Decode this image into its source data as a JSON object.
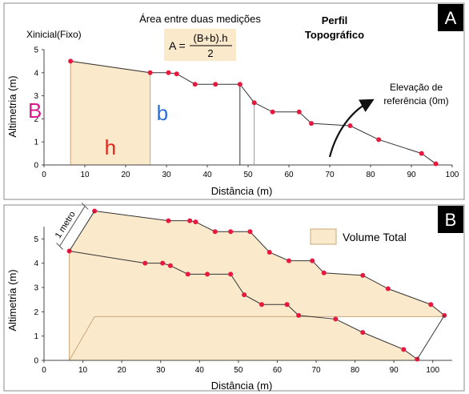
{
  "colors": {
    "area_fill": "#fbe9cc",
    "area_stroke": "#caa77a",
    "point": "#e8193e",
    "line": "#333333",
    "label_B": "#d81b8c",
    "label_b": "#2a6fd6",
    "label_h": "#e8251a",
    "badge_bg": "#000000",
    "badge_fg": "#ffffff"
  },
  "chart_data": [
    {
      "id": "A",
      "type": "line",
      "badge": "A",
      "title_topright": [
        "Perfil",
        "Topográfico"
      ],
      "area_title": "Área entre duas medições",
      "formula": {
        "lhs": "A =",
        "numerator": "(B+b).h",
        "denominator": "2"
      },
      "x_start_label": "Xinicial(Fixo)",
      "xlabel": "Distância (m)",
      "ylabel": "Altimetria (m)",
      "xlim": [
        0,
        100
      ],
      "ylim": [
        0,
        5
      ],
      "xticks": [
        "0",
        "10",
        "20",
        "30",
        "40",
        "50",
        "60",
        "70",
        "80",
        "90",
        "100"
      ],
      "yticks": [
        "0",
        "1",
        "2",
        "3",
        "4",
        "5"
      ],
      "labels": {
        "B": "B",
        "b": "b",
        "h": "h"
      },
      "annotation": [
        "Elevação de",
        "referência (0m)"
      ],
      "area_segment": {
        "x0": 6.5,
        "x1": 26,
        "y0": 4.5,
        "y1": 4.0
      },
      "vertical_lines": [
        48,
        51.5
      ],
      "series": [
        {
          "x": [
            6.5,
            26,
            30.5,
            32.5,
            37,
            42,
            48,
            51.5,
            56,
            62.5,
            65.5,
            75,
            82,
            92.5,
            96
          ],
          "y": [
            4.5,
            4.0,
            4.0,
            3.95,
            3.5,
            3.5,
            3.5,
            2.7,
            2.3,
            2.3,
            1.8,
            1.7,
            1.1,
            0.5,
            0.05
          ]
        }
      ]
    },
    {
      "id": "B",
      "type": "area",
      "badge": "B",
      "xlabel": "Distância (m)",
      "ylabel": "Altimetria (m)",
      "xlim": [
        0,
        105
      ],
      "ylim": [
        0,
        6
      ],
      "xticks": [
        "0",
        "10",
        "20",
        "30",
        "40",
        "50",
        "60",
        "70",
        "80",
        "90",
        "100"
      ],
      "yticks": [
        "0",
        "1",
        "2",
        "3",
        "4",
        "5"
      ],
      "legend": "Volume Total",
      "dimension_label": "1 metro",
      "series": [
        {
          "x": [
            13,
            32,
            37.5,
            39,
            44,
            48,
            53,
            58,
            63,
            69,
            72,
            82,
            88.5,
            99.5,
            103
          ],
          "y": [
            6.15,
            5.75,
            5.75,
            5.7,
            5.3,
            5.3,
            5.3,
            4.45,
            4.1,
            4.1,
            3.6,
            3.5,
            2.95,
            2.3,
            1.85
          ]
        },
        {
          "x": [
            6.5,
            26,
            30.5,
            32.5,
            37,
            42,
            48,
            51.5,
            56,
            62.5,
            65.5,
            75,
            82,
            92.5,
            96
          ],
          "y": [
            4.5,
            4.0,
            4.0,
            3.9,
            3.55,
            3.55,
            3.55,
            2.7,
            2.3,
            2.3,
            1.85,
            1.7,
            1.15,
            0.45,
            0.05
          ]
        }
      ],
      "back_base": {
        "x0": 13,
        "x1": 103,
        "y": 1.8
      }
    }
  ]
}
